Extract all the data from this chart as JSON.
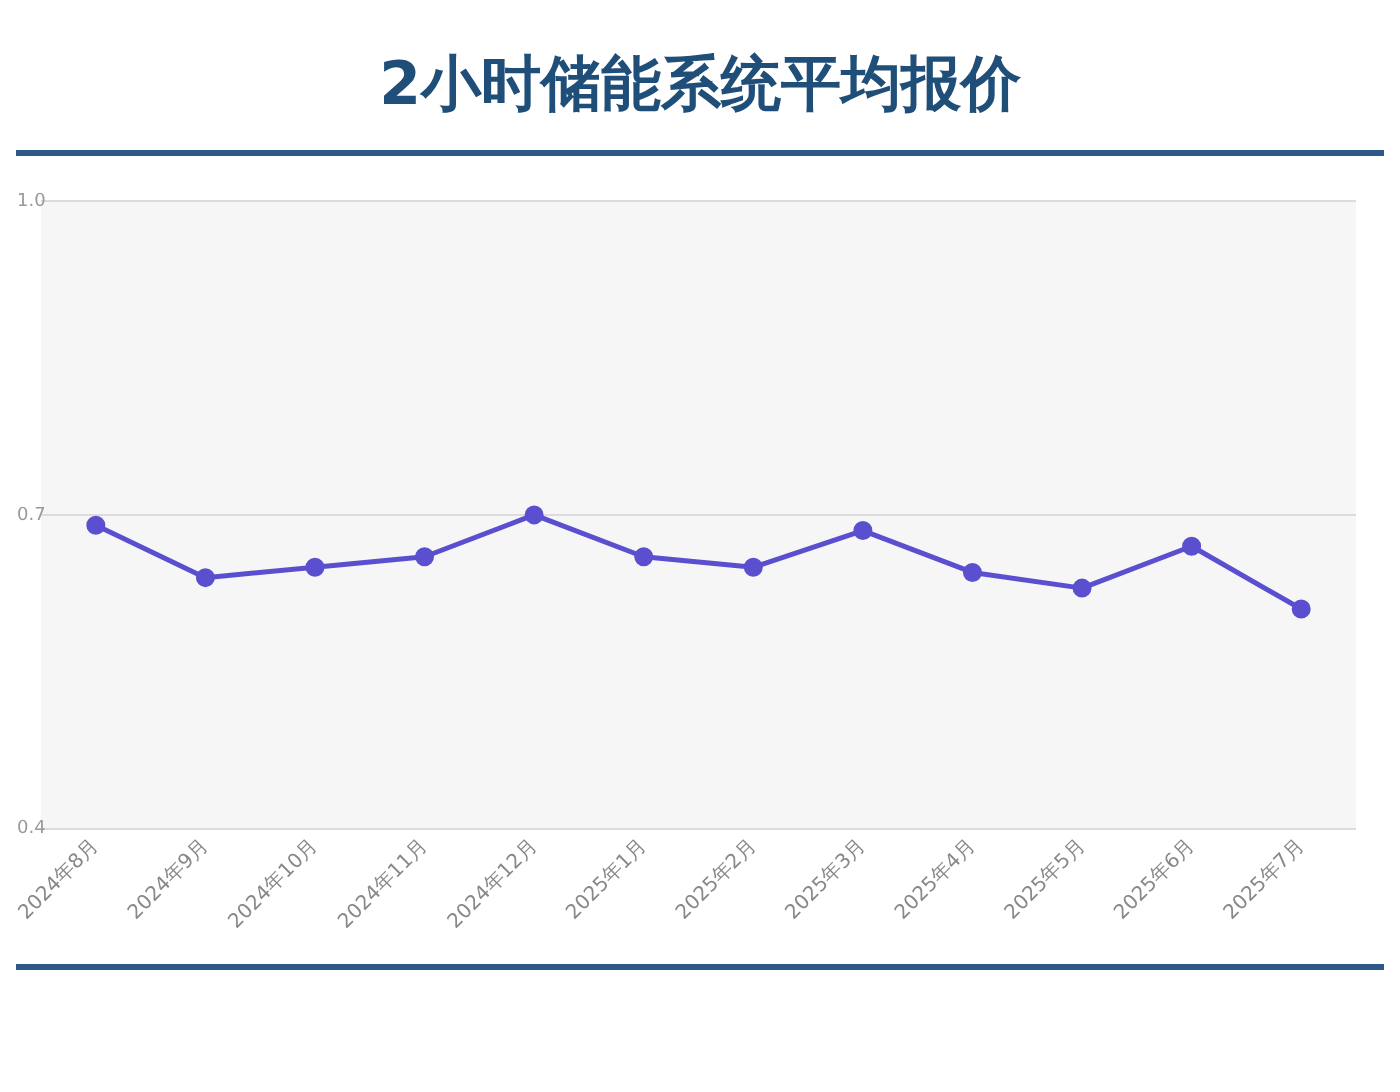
{
  "chart_data": {
    "type": "line",
    "title": "2小时储能系统平均报价",
    "categories": [
      "2024年8月",
      "2024年9月",
      "2024年10月",
      "2024年11月",
      "2024年12月",
      "2025年1月",
      "2025年2月",
      "2025年3月",
      "2025年4月",
      "2025年5月",
      "2025年6月",
      "2025年7月"
    ],
    "series": [
      {
        "color": "#5a4fcf",
        "values": [
          0.69,
          0.64,
          0.65,
          0.66,
          0.7,
          0.66,
          0.65,
          0.685,
          0.645,
          0.63,
          0.67,
          0.61
        ]
      }
    ],
    "ylim": [
      0.4,
      1.0
    ],
    "yticks": [
      {
        "value": 0.4,
        "label": "0.4"
      },
      {
        "value": 0.7,
        "label": "0.7"
      },
      {
        "value": 1.0,
        "label": "1.0"
      }
    ],
    "grid": "y",
    "marker": "circle",
    "line_style": "solid",
    "legend": false
  }
}
